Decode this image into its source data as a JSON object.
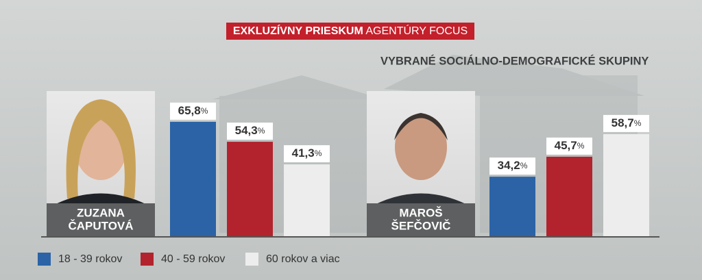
{
  "chart_data": {
    "type": "bar",
    "title": [
      "EXKLUZÍVNY PRIESKUM",
      "AGENTÚRY FOCUS"
    ],
    "subtitle": "VYBRANÉ SOCIÁLNO-DEMOGRAFICKÉ SKUPINY",
    "categories": [
      [
        "ZUZANA",
        "ČAPUTOVÁ"
      ],
      [
        "MAROŠ",
        "ŠEFČOVIČ"
      ]
    ],
    "series": [
      {
        "name": "18 - 39 rokov",
        "color": "#2b63a6",
        "values": [
          65.8,
          34.2
        ],
        "value_labels": [
          "65,8%",
          "34,2%"
        ]
      },
      {
        "name": "40 - 59 rokov",
        "color": "#b2232d",
        "values": [
          54.3,
          45.7
        ],
        "value_labels": [
          "54,3%",
          "45,7%"
        ]
      },
      {
        "name": "60 rokov a viac",
        "color": "#ededed",
        "values": [
          41.3,
          58.7
        ],
        "value_labels": [
          "41,3%",
          "58,7%"
        ]
      }
    ],
    "ylim": [
      0,
      100
    ]
  }
}
